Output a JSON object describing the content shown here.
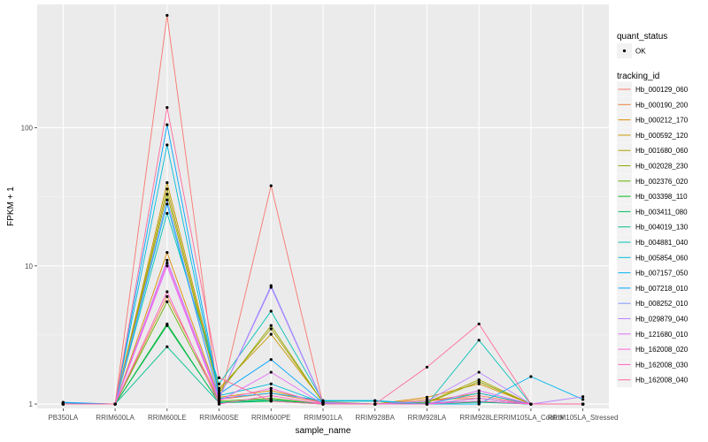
{
  "chart_data": {
    "type": "line",
    "xlabel": "sample_name",
    "ylabel": "FPKM + 1",
    "y_scale": "log10",
    "ylim": [
      0.93,
      780
    ],
    "y_ticks": [
      1,
      10,
      100
    ],
    "y_tick_labels": [
      "1",
      "10",
      "100"
    ],
    "grid": true,
    "legend_placement": "right",
    "categories": [
      "PB350LA",
      "RRIM600LA",
      "RRIM600LE",
      "RRIM600SE",
      "RRIM600PE",
      "RRIM901LA",
      "RRIM928BA",
      "RRIM928LA",
      "RRIM928LE",
      "RRIM105LA_Control",
      "RRIM105LA_Stressed"
    ],
    "quant_status_legend": {
      "title": "quant_status",
      "items": [
        "OK"
      ]
    },
    "tracking_legend_title": "tracking_id",
    "series": [
      {
        "name": "Hb_000129_060",
        "color": "#F8766D",
        "values": [
          1.0,
          1.0,
          650,
          1.0,
          38,
          1.0,
          1.0,
          1.05,
          1.15,
          1.0,
          1.0
        ]
      },
      {
        "name": "Hb_000190_200",
        "color": "#EC8239",
        "values": [
          1.02,
          1.0,
          6.0,
          1.08,
          1.2,
          1.02,
          1.0,
          1.08,
          1.1,
          1.0,
          1.0
        ]
      },
      {
        "name": "Hb_000212_170",
        "color": "#DB8E00",
        "values": [
          1.0,
          1.0,
          12.5,
          1.12,
          1.25,
          1.03,
          1.0,
          1.12,
          1.4,
          1.0,
          1.0
        ]
      },
      {
        "name": "Hb_000592_120",
        "color": "#C79800",
        "values": [
          1.0,
          1.0,
          40,
          1.3,
          3.2,
          1.04,
          1.0,
          1.05,
          1.2,
          1.0,
          1.0
        ]
      },
      {
        "name": "Hb_001680_060",
        "color": "#AEA200",
        "values": [
          1.0,
          1.0,
          36,
          1.25,
          3.5,
          1.03,
          1.0,
          1.03,
          1.5,
          1.0,
          1.0
        ]
      },
      {
        "name": "Hb_002028_230",
        "color": "#8FAA00",
        "values": [
          1.0,
          1.0,
          33,
          1.2,
          3.7,
          1.02,
          1.0,
          1.02,
          1.45,
          1.0,
          1.0
        ]
      },
      {
        "name": "Hb_002376_020",
        "color": "#64B200",
        "values": [
          1.0,
          1.0,
          5.5,
          1.05,
          1.1,
          1.0,
          1.0,
          1.0,
          1.05,
          1.0,
          1.0
        ]
      },
      {
        "name": "Hb_003398_110",
        "color": "#00B81B",
        "values": [
          1.0,
          1.0,
          3.8,
          1.02,
          1.05,
          1.0,
          1.0,
          1.0,
          1.05,
          1.0,
          1.0
        ]
      },
      {
        "name": "Hb_003411_080",
        "color": "#00BD5C",
        "values": [
          1.0,
          1.0,
          3.7,
          1.03,
          1.08,
          1.0,
          1.0,
          1.0,
          1.03,
          1.0,
          1.0
        ]
      },
      {
        "name": "Hb_004019_130",
        "color": "#00C08E",
        "values": [
          1.0,
          1.0,
          2.6,
          1.02,
          1.06,
          1.0,
          1.0,
          1.02,
          1.04,
          1.0,
          1.0
        ]
      },
      {
        "name": "Hb_004881_040",
        "color": "#00C1B7",
        "values": [
          1.0,
          1.0,
          24,
          1.4,
          4.7,
          1.05,
          1.05,
          1.0,
          2.9,
          1.0,
          1.0
        ]
      },
      {
        "name": "Hb_005854_060",
        "color": "#00BDDC",
        "values": [
          1.0,
          1.0,
          75,
          1.15,
          1.4,
          1.02,
          1.0,
          1.0,
          1.2,
          1.0,
          1.0
        ]
      },
      {
        "name": "Hb_007157_050",
        "color": "#00B4F0",
        "values": [
          1.02,
          1.0,
          28,
          1.1,
          1.2,
          1.06,
          1.06,
          1.0,
          1.0,
          1.58,
          1.08
        ]
      },
      {
        "name": "Hb_007218_010",
        "color": "#00A5FF",
        "values": [
          1.03,
          1.0,
          105,
          1.18,
          2.1,
          1.02,
          1.0,
          1.0,
          1.1,
          1.0,
          1.0
        ]
      },
      {
        "name": "Hb_008252_010",
        "color": "#7F96FF",
        "values": [
          1.0,
          1.0,
          30,
          1.1,
          7.2,
          1.03,
          1.0,
          1.0,
          1.05,
          1.0,
          1.0
        ]
      },
      {
        "name": "Hb_029879_040",
        "color": "#BC81FF",
        "values": [
          1.0,
          1.0,
          11,
          1.1,
          7.0,
          1.02,
          1.0,
          1.05,
          1.7,
          1.0,
          1.13
        ]
      },
      {
        "name": "Hb_121680_010",
        "color": "#E26EF7",
        "values": [
          1.0,
          1.0,
          10,
          1.05,
          1.7,
          1.0,
          1.0,
          1.0,
          1.25,
          1.0,
          1.0
        ]
      },
      {
        "name": "Hb_162008_020",
        "color": "#F863DF",
        "values": [
          1.0,
          1.0,
          10.5,
          1.07,
          1.3,
          1.0,
          1.0,
          1.0,
          1.1,
          1.0,
          1.0
        ]
      },
      {
        "name": "Hb_162008_030",
        "color": "#FF62BF",
        "values": [
          1.0,
          1.0,
          6.5,
          1.0,
          1.15,
          1.0,
          1.0,
          1.0,
          1.05,
          1.0,
          1.0
        ]
      },
      {
        "name": "Hb_162008_040",
        "color": "#FF6A98",
        "values": [
          1.0,
          1.0,
          140,
          1.55,
          1.05,
          1.0,
          1.0,
          1.85,
          3.8,
          1.0,
          1.0
        ]
      }
    ]
  }
}
